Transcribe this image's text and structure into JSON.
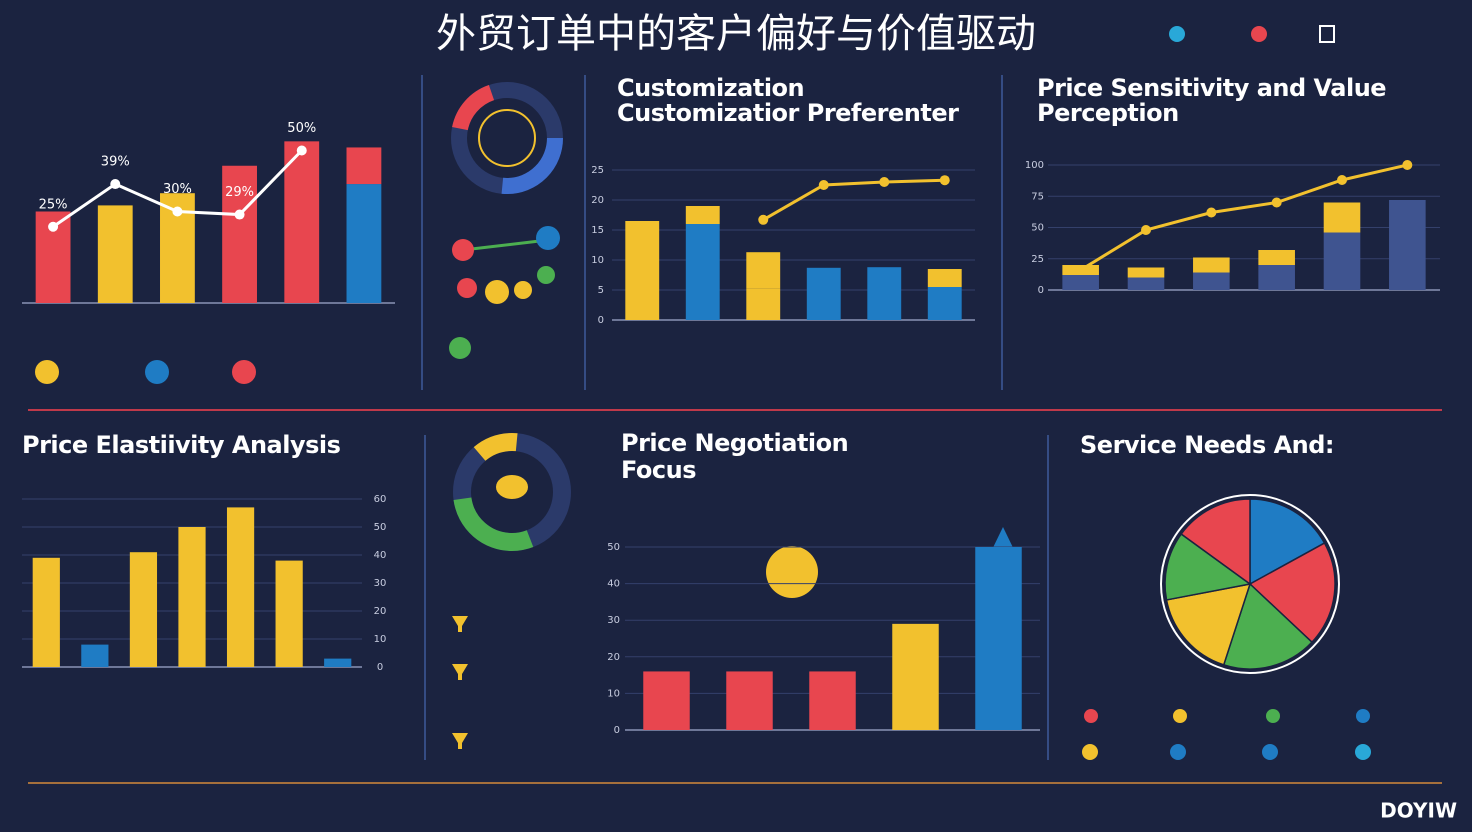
{
  "title": "外贸订单中的客户偏好与价值驱动",
  "headings": [
    "Customization",
    "Customizatior Preferenter",
    "Price Sensitivity and Value",
    "Perception",
    "Price Elastiivity Analysis",
    "Price Negotiation",
    "Focus",
    "Service Needs And:"
  ],
  "brand": "DOYIW",
  "chart_data": [
    {
      "type": "bar",
      "categories": [
        null,
        null,
        null,
        null,
        null,
        null
      ],
      "ylim": [
        0,
        60
      ],
      "series": [
        {
          "colors": [
            "#e8464f",
            "#f2c12e",
            "#f2c12e",
            "#e8464f",
            "#e8464f",
            "#1f7cc4"
          ],
          "values": [
            30,
            32,
            36,
            45,
            53,
            39
          ]
        },
        {
          "color": "#e8464f",
          "values": [
            null,
            null,
            null,
            null,
            null,
            12
          ]
        },
        {
          "type": "line",
          "color": "#ffffff",
          "values": [
            25,
            39,
            30,
            29,
            50,
            null
          ],
          "value_labels": [
            "25%",
            "39%",
            "30%",
            "29%",
            "50%",
            null
          ]
        }
      ]
    },
    {
      "type": "bar",
      "categories": [
        null,
        null,
        null,
        null,
        null,
        null
      ],
      "ylim": [
        0,
        25
      ],
      "yticks": [
        0,
        5,
        10,
        15,
        20,
        25
      ],
      "series": [
        {
          "colors": [
            "#f2c12e",
            "#1f7cc4",
            "#f2c12e",
            "#1f7cc4",
            "#1f7cc4",
            "#1f7cc4"
          ],
          "values": [
            16.5,
            16,
            5.3,
            8.7,
            8.8,
            5.5
          ]
        },
        {
          "color": "#f2c12e",
          "values": [
            null,
            3,
            6,
            null,
            null,
            3
          ]
        },
        {
          "type": "line",
          "color": "#f2c12e",
          "values": [
            null,
            null,
            16.7,
            22.5,
            23,
            23.3
          ]
        }
      ]
    },
    {
      "type": "bar",
      "categories": [
        null,
        null,
        null,
        null,
        null,
        null
      ],
      "ylim": [
        0,
        100
      ],
      "yticks": [
        0,
        25,
        50,
        75,
        100
      ],
      "series": [
        {
          "color": "#3f5490",
          "values": [
            12,
            10,
            14,
            20,
            46,
            72
          ]
        },
        {
          "color": "#f2c12e",
          "values": [
            8,
            8,
            12,
            12,
            24,
            null
          ]
        },
        {
          "type": "line",
          "color": "#f2c12e",
          "values": [
            16,
            48,
            62,
            70,
            88,
            100
          ]
        }
      ]
    },
    {
      "type": "bar",
      "categories": [
        null,
        null,
        null,
        null,
        null,
        null,
        null
      ],
      "ylim": [
        0,
        60
      ],
      "yticks": [
        0,
        10,
        20,
        30,
        40,
        50,
        60
      ],
      "series": [
        {
          "colors": [
            "#f2c12e",
            "#1f7cc4",
            "#f2c12e",
            "#f2c12e",
            "#f2c12e",
            "#f2c12e",
            "#1f7cc4"
          ],
          "values": [
            39,
            8,
            41,
            50,
            57,
            38,
            3
          ]
        }
      ]
    },
    {
      "type": "bar",
      "categories": [
        null,
        null,
        null,
        null,
        null
      ],
      "ylim": [
        0,
        50
      ],
      "yticks": [
        0,
        10,
        20,
        30,
        40,
        50
      ],
      "series": [
        {
          "colors": [
            "#e8464f",
            "#e8464f",
            "#e8464f",
            "#f2c12e",
            "#1f7cc4"
          ],
          "values": [
            16,
            16,
            16,
            29,
            50
          ]
        }
      ]
    },
    {
      "type": "pie",
      "values": [
        17,
        20,
        18,
        17,
        13,
        15
      ],
      "colors": [
        "#1f7cc4",
        "#e8464f",
        "#4caf50",
        "#f2c12e",
        "#4caf50",
        "#e8464f"
      ]
    }
  ]
}
